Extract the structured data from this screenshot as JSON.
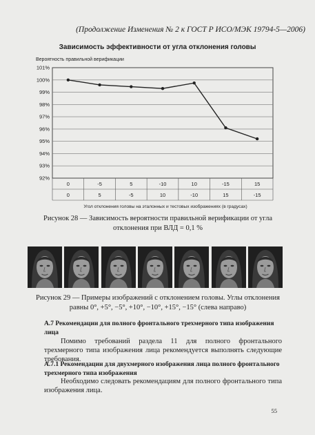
{
  "header": {
    "text": "(Продолжение Изменения № 2 к ГОСТ Р ИСО/МЭК 19794-5—2006)"
  },
  "chart_data": {
    "type": "line",
    "title": "Зависимость эффективности от угла отклонения головы",
    "ylabel": "Вероятность правильной верификации",
    "xlabel": "Угол отклонения головы на эталонных и тестовых изображениях (в градусах)",
    "ylim": [
      92,
      101
    ],
    "yticks": [
      "92%",
      "93%",
      "94%",
      "95%",
      "96%",
      "97%",
      "98%",
      "99%",
      "100%",
      "101%"
    ],
    "x_row1": [
      "0",
      "-5",
      "5",
      "-10",
      "10",
      "-15",
      "15"
    ],
    "x_row2": [
      "0",
      "5",
      "-5",
      "10",
      "-10",
      "15",
      "-15"
    ],
    "series": [
      {
        "values": [
          100,
          99.6,
          99.45,
          99.3,
          99.75,
          96.1,
          95.2
        ]
      }
    ],
    "grid": true,
    "line_color": "#222222"
  },
  "figure28_caption": "Рисунок 28 — Зависимость вероятности правильной верификации от угла отклонения при ВЛД = 0,1 %",
  "faces": {
    "count": 7
  },
  "figure29_caption": "Рисунок 29 — Примеры изображений с отклонением головы. Углы отклонения равны 0°, +5°, −5°, +10°, −10°, +15°, −15° (слева направо)",
  "section_a7": {
    "title": "А.7 Рекомендации для полного фронтального трехмерного типа изображения лица"
  },
  "paragraph1": "Помимо требований раздела 11 для полного фронтального трехмерного типа изображения лица рекомендуется выполнять следующие требования.",
  "section_a71": {
    "title": "А.7.1 Рекомендации для двухмерного изображения лица полного фронтального трехмерного типа изображения"
  },
  "paragraph2": "Необходимо следовать рекомендациям для полного фронтального типа изображения лица.",
  "page_number": "55"
}
